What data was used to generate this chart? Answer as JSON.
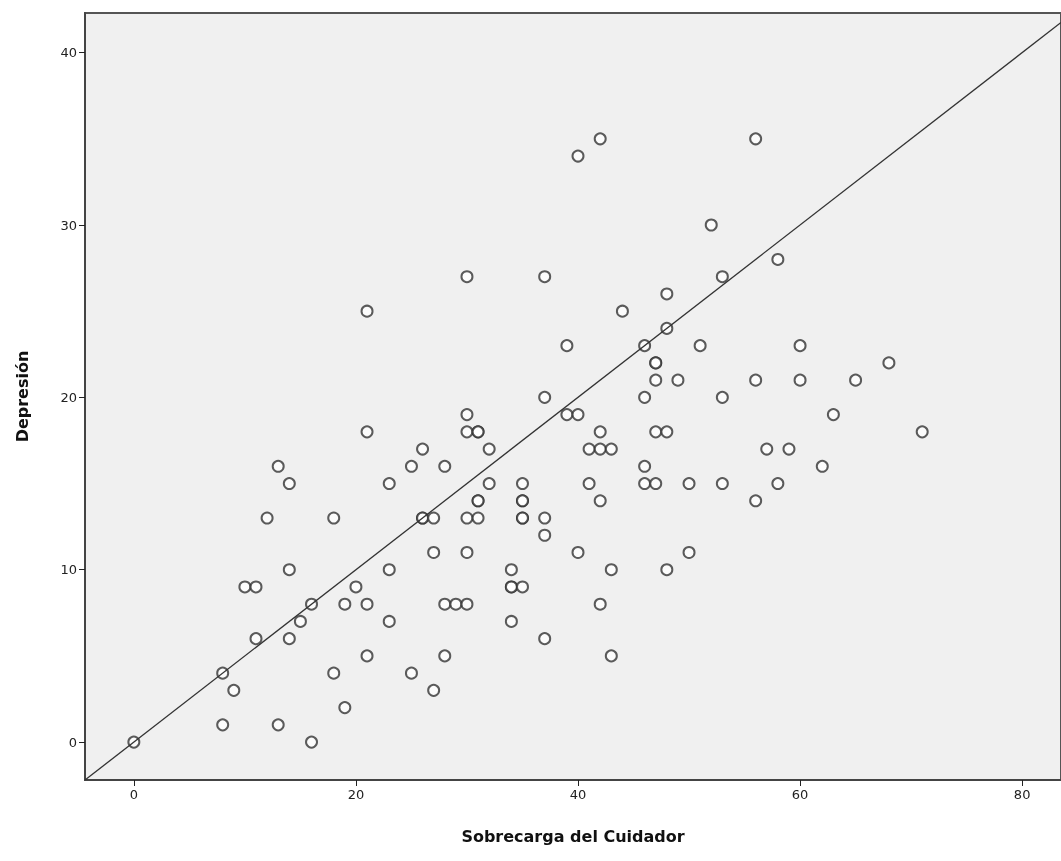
{
  "chart_data": {
    "type": "scatter",
    "xlabel": "Sobrecarga del Cuidador",
    "ylabel": "Depresión",
    "xlim": [
      -4.4,
      83.5
    ],
    "ylim": [
      -2.2,
      42.3
    ],
    "xticks": [
      0,
      20,
      40,
      60,
      80
    ],
    "yticks": [
      0,
      10,
      20,
      30,
      40
    ],
    "grid": false,
    "series": [
      {
        "marker": "circle",
        "color": "#333333",
        "x": [
          21,
          42,
          40,
          52,
          30,
          37,
          53,
          48,
          44,
          48,
          39,
          46,
          51,
          47,
          47,
          47,
          49,
          37,
          46,
          53,
          56,
          58,
          60,
          68,
          56,
          60,
          65,
          21,
          13,
          25,
          14,
          23,
          12,
          18,
          14,
          23,
          10,
          11,
          20,
          16,
          19,
          21,
          15,
          23,
          11,
          14,
          21,
          8,
          18,
          25,
          9,
          19,
          8,
          13,
          16,
          0,
          26,
          26,
          26,
          27,
          30,
          30,
          31,
          39,
          40,
          31,
          31,
          42,
          47,
          48,
          32,
          41,
          42,
          43,
          28,
          46,
          32,
          35,
          41,
          46,
          47,
          50,
          53,
          31,
          35,
          35,
          42,
          30,
          31,
          35,
          35,
          37,
          37,
          27,
          30,
          40,
          50,
          34,
          43,
          48,
          34,
          34,
          35,
          28,
          29,
          30,
          42,
          34,
          37,
          28,
          43,
          27,
          63,
          71,
          57,
          59,
          62,
          58,
          56
        ],
        "values": [
          25,
          35,
          34,
          30,
          27,
          27,
          27,
          26,
          25,
          24,
          23,
          23,
          23,
          22,
          22,
          21,
          21,
          20,
          20,
          20,
          35,
          28,
          23,
          22,
          21,
          21,
          21,
          18,
          16,
          16,
          15,
          15,
          13,
          13,
          10,
          10,
          9,
          9,
          9,
          8,
          8,
          8,
          7,
          7,
          6,
          6,
          5,
          4,
          4,
          4,
          3,
          2,
          1,
          1,
          0,
          0,
          17,
          13,
          13,
          13,
          19,
          18,
          18,
          19,
          19,
          18,
          14,
          18,
          18,
          18,
          17,
          17,
          17,
          17,
          16,
          16,
          15,
          15,
          15,
          15,
          15,
          15,
          15,
          14,
          14,
          14,
          14,
          13,
          13,
          13,
          13,
          13,
          12,
          11,
          11,
          11,
          11,
          10,
          10,
          10,
          9,
          9,
          9,
          8,
          8,
          8,
          8,
          7,
          6,
          5,
          5,
          3,
          19,
          18,
          17,
          17,
          16,
          15,
          14
        ]
      },
      {
        "type": "line",
        "marker": "none",
        "color": "#333333",
        "x": [
          -4.4,
          83.5
        ],
        "values": [
          -2.2,
          41.75
        ]
      }
    ]
  }
}
